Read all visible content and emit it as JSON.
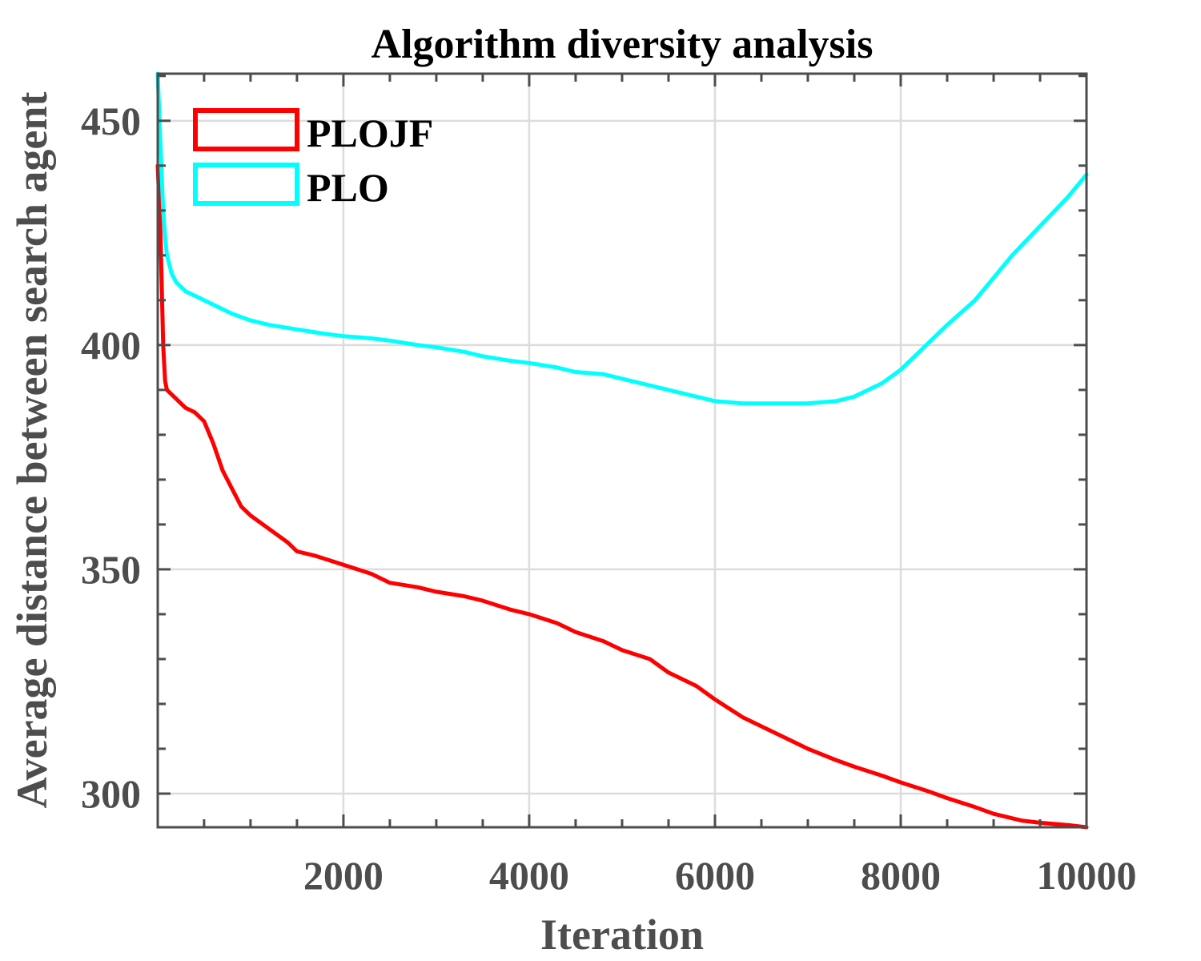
{
  "chart_data": {
    "type": "line",
    "title": "Algorithm diversity analysis",
    "xlabel": "Iteration",
    "ylabel": "Average distance between search agent",
    "xlim": [
      1,
      10000
    ],
    "ylim": [
      292.5,
      460.5
    ],
    "xticks": [
      2000,
      4000,
      6000,
      8000,
      10000
    ],
    "xtick_labels": [
      "2000",
      "4000",
      "6000",
      "8000",
      "10000"
    ],
    "yticks": [
      300,
      350,
      400,
      450
    ],
    "ytick_labels": [
      "300",
      "350",
      "400",
      "450"
    ],
    "grid": true,
    "legend_position": "top-left",
    "colors": {
      "axis": "#4d4d4d",
      "grid": "#dcdcdc"
    },
    "series": [
      {
        "name": "PLOJF",
        "color": "#ff0000",
        "x": [
          1,
          30,
          60,
          80,
          100,
          200,
          300,
          400,
          500,
          600,
          700,
          800,
          900,
          1000,
          1200,
          1400,
          1500,
          1700,
          2000,
          2300,
          2500,
          2800,
          3000,
          3300,
          3500,
          3800,
          4000,
          4300,
          4500,
          4800,
          5000,
          5300,
          5500,
          5800,
          6000,
          6300,
          6500,
          6800,
          7000,
          7300,
          7500,
          7800,
          8000,
          8300,
          8500,
          8800,
          9000,
          9300,
          9500,
          9800,
          10000
        ],
        "y": [
          440,
          425,
          400,
          392,
          390,
          388,
          386,
          385,
          383,
          378,
          372,
          368,
          364,
          362,
          359,
          356,
          354,
          353,
          351,
          349,
          347,
          346,
          345,
          344,
          343,
          341,
          340,
          338,
          336,
          334,
          332,
          330,
          327,
          324,
          321,
          317,
          315,
          312,
          310,
          307.5,
          306,
          304,
          302.5,
          300.5,
          299,
          297,
          295.5,
          294,
          293.5,
          293,
          292.5
        ]
      },
      {
        "name": "PLO",
        "color": "#00ffff",
        "x": [
          1,
          20,
          40,
          60,
          80,
          100,
          150,
          200,
          300,
          400,
          500,
          600,
          800,
          1000,
          1200,
          1500,
          1800,
          2000,
          2300,
          2500,
          2800,
          3000,
          3300,
          3500,
          3800,
          4000,
          4300,
          4500,
          4800,
          5000,
          5300,
          5500,
          5800,
          6000,
          6300,
          6500,
          6800,
          7000,
          7300,
          7500,
          7800,
          8000,
          8200,
          8500,
          8800,
          9000,
          9200,
          9500,
          9800,
          10000
        ],
        "y": [
          460.5,
          450,
          440,
          430,
          424,
          420,
          416,
          414,
          412,
          411,
          410,
          409,
          407,
          405.5,
          404.5,
          403.5,
          402.5,
          402,
          401.5,
          401,
          400,
          399.5,
          398.5,
          397.5,
          396.5,
          396,
          395,
          394,
          393.5,
          392.5,
          391,
          390,
          388.5,
          387.5,
          387,
          387,
          387,
          387,
          387.5,
          388.5,
          391.5,
          394.5,
          398.5,
          404.5,
          410,
          415,
          420,
          426.5,
          433,
          438
        ]
      }
    ]
  }
}
